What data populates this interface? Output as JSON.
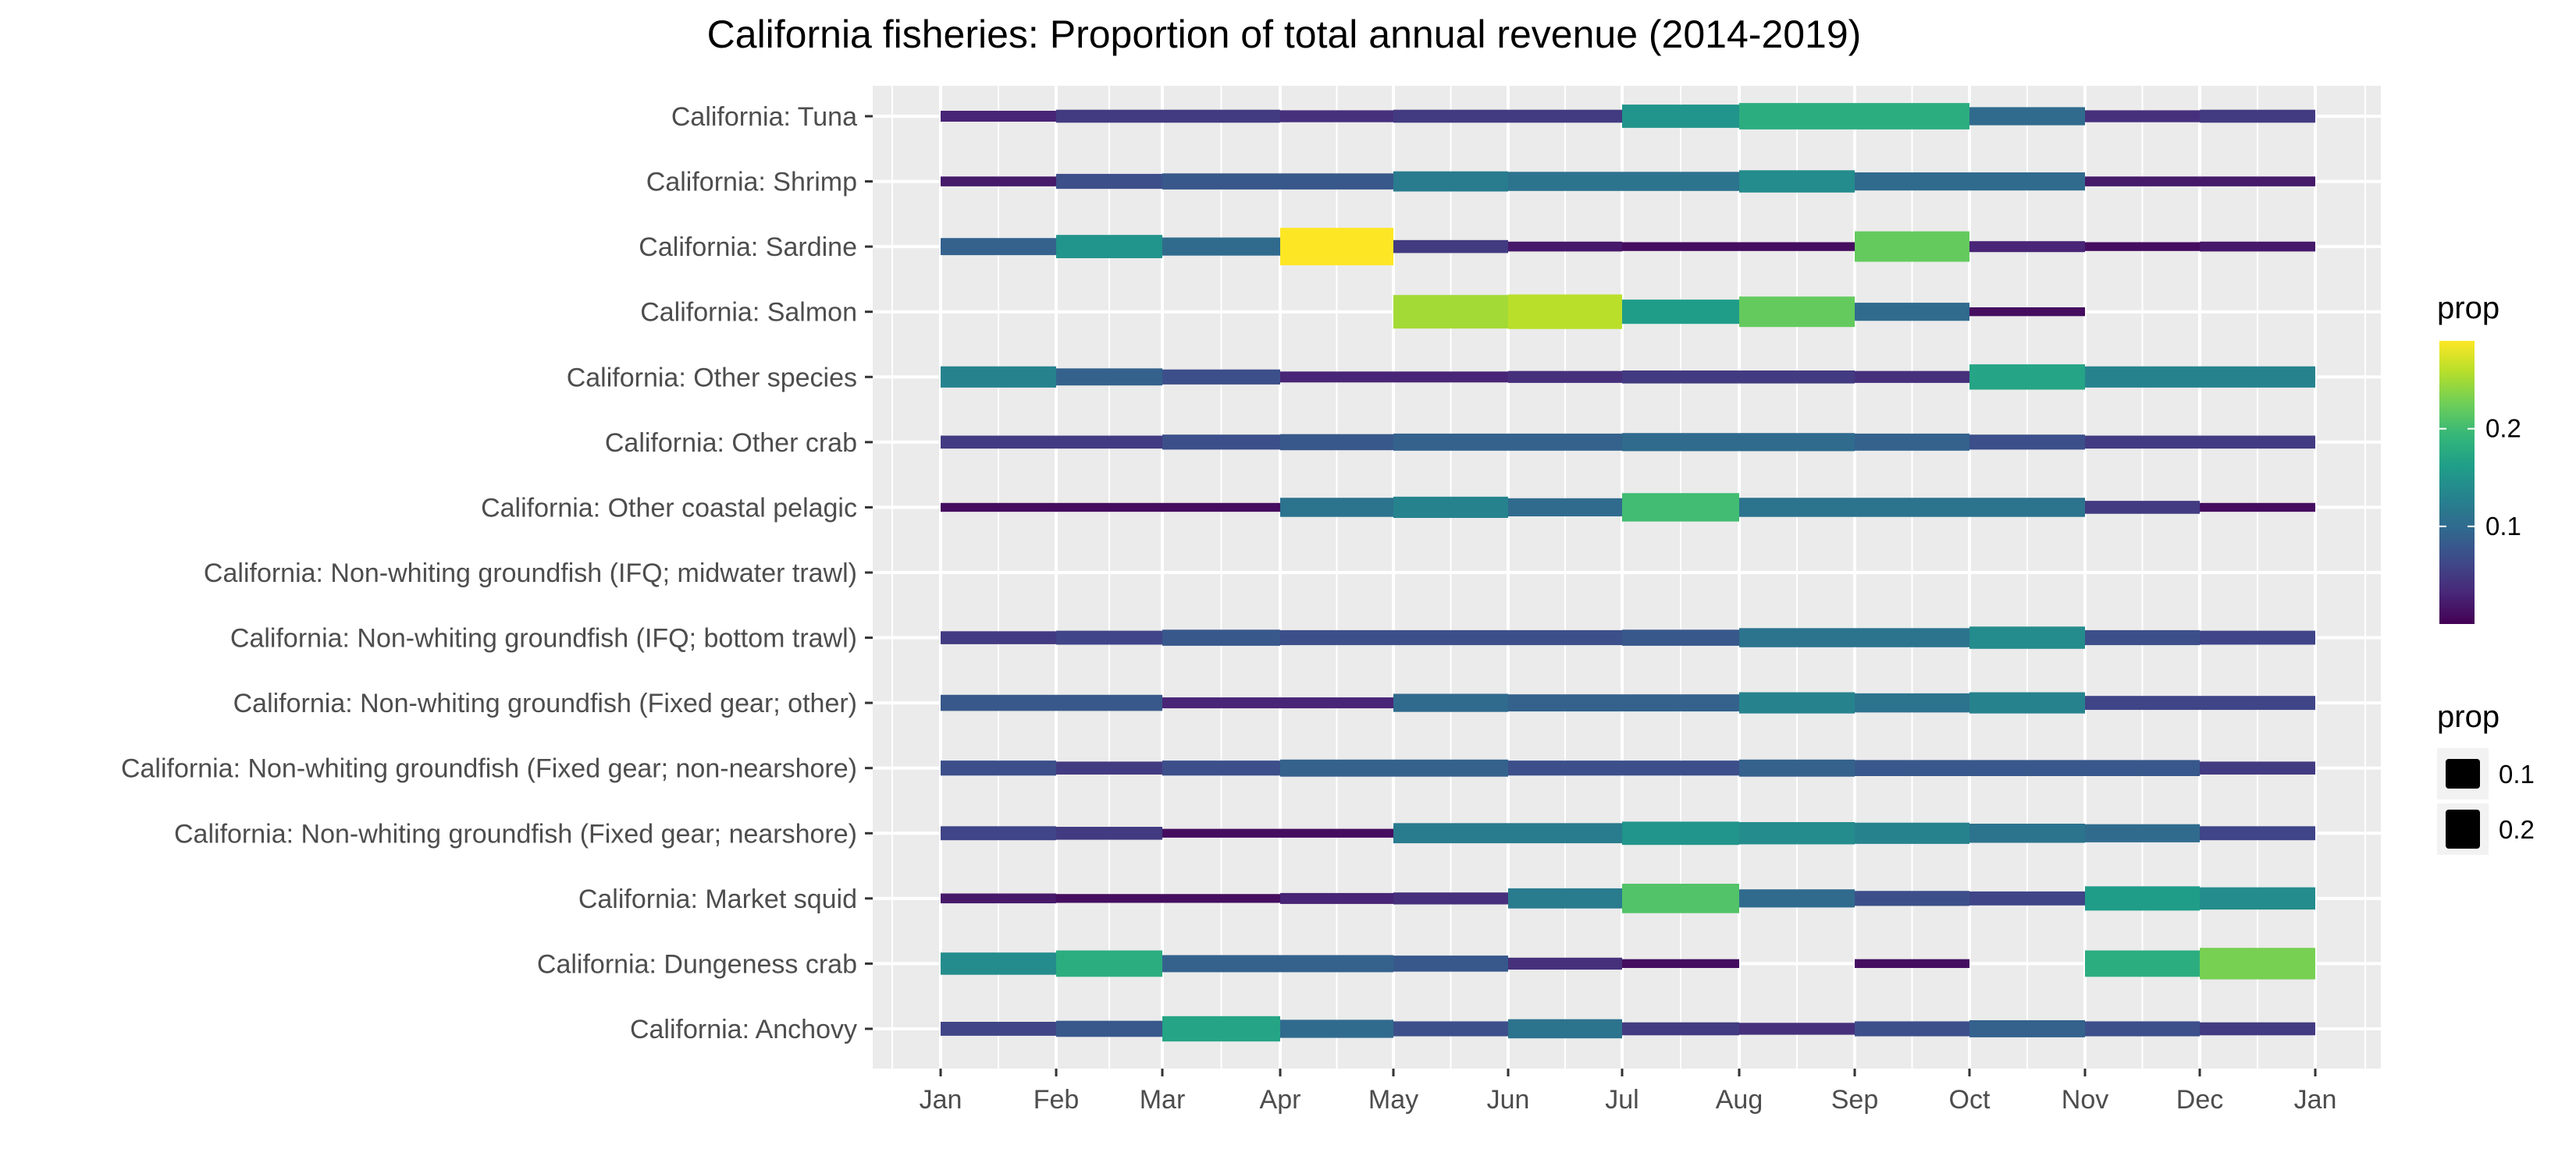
{
  "chart_data": {
    "type": "heatmap",
    "title": "California fisheries: Proportion of total annual revenue (2014-2019)",
    "xlabel": "",
    "ylabel": "",
    "x_ticks": [
      "Jan",
      "Feb",
      "Mar",
      "Apr",
      "May",
      "Jun",
      "Jul",
      "Aug",
      "Sep",
      "Oct",
      "Nov",
      "Dec",
      "Jan"
    ],
    "months": [
      "Jan",
      "Feb",
      "Mar",
      "Apr",
      "May",
      "Jun",
      "Jul",
      "Aug",
      "Sep",
      "Oct",
      "Nov",
      "Dec"
    ],
    "grid": true,
    "encoding": "bar segment color and thickness both map to prop",
    "legend_placement": "right",
    "color_legend": {
      "title": "prop",
      "breaks": [
        0.1,
        0.2
      ],
      "min": 0.0,
      "max": 0.29,
      "palette": "viridis"
    },
    "size_legend": {
      "title": "prop",
      "breaks": [
        0.1,
        0.2
      ]
    },
    "series": [
      {
        "name": "California: Tuna",
        "values": [
          0.03,
          0.05,
          0.05,
          0.04,
          0.05,
          0.05,
          0.15,
          0.18,
          0.18,
          0.1,
          0.04,
          0.05
        ]
      },
      {
        "name": "California: Shrimp",
        "values": [
          0.02,
          0.07,
          0.08,
          0.08,
          0.12,
          0.11,
          0.11,
          0.14,
          0.1,
          0.1,
          0.02,
          0.02
        ]
      },
      {
        "name": "California: Sardine",
        "values": [
          0.09,
          0.15,
          0.1,
          0.29,
          0.05,
          0.02,
          0.01,
          0.01,
          0.22,
          0.03,
          0.01,
          0.02
        ]
      },
      {
        "name": "California: Salmon",
        "values": [
          null,
          null,
          null,
          null,
          0.25,
          0.26,
          0.16,
          0.22,
          0.1,
          0.01,
          null,
          null
        ]
      },
      {
        "name": "California: Other species",
        "values": [
          0.13,
          0.09,
          0.07,
          0.03,
          0.03,
          0.04,
          0.05,
          0.05,
          0.04,
          0.17,
          0.13,
          0.13
        ]
      },
      {
        "name": "California: Other crab",
        "values": [
          0.05,
          0.05,
          0.07,
          0.08,
          0.09,
          0.09,
          0.1,
          0.1,
          0.09,
          0.07,
          0.05,
          0.05
        ]
      },
      {
        "name": "California: Other coastal pelagic",
        "values": [
          0.01,
          0.01,
          0.01,
          0.11,
          0.13,
          0.1,
          0.2,
          0.11,
          0.11,
          0.11,
          0.05,
          0.01
        ]
      },
      {
        "name": "California: Non-whiting groundfish (IFQ; midwater trawl)",
        "values": [
          null,
          null,
          null,
          null,
          null,
          null,
          null,
          null,
          null,
          null,
          null,
          null
        ]
      },
      {
        "name": "California: Non-whiting groundfish (IFQ; bottom trawl)",
        "values": [
          0.05,
          0.06,
          0.08,
          0.07,
          0.07,
          0.07,
          0.08,
          0.11,
          0.11,
          0.14,
          0.07,
          0.06
        ]
      },
      {
        "name": "California: Non-whiting groundfish (Fixed gear; other)",
        "values": [
          0.08,
          0.08,
          0.03,
          0.03,
          0.1,
          0.09,
          0.09,
          0.13,
          0.11,
          0.13,
          0.06,
          0.06
        ]
      },
      {
        "name": "California: Non-whiting groundfish (Fixed gear; non-nearshore)",
        "values": [
          0.07,
          0.05,
          0.07,
          0.09,
          0.09,
          0.07,
          0.07,
          0.09,
          0.08,
          0.08,
          0.08,
          0.05
        ]
      },
      {
        "name": "California: Non-whiting groundfish (Fixed gear; nearshore)",
        "values": [
          0.06,
          0.05,
          0.01,
          0.01,
          0.12,
          0.12,
          0.15,
          0.14,
          0.13,
          0.11,
          0.1,
          0.06
        ]
      },
      {
        "name": "California: Market squid",
        "values": [
          0.02,
          0.01,
          0.01,
          0.03,
          0.04,
          0.12,
          0.21,
          0.1,
          0.07,
          0.06,
          0.16,
          0.14
        ]
      },
      {
        "name": "California: Dungeness crab",
        "values": [
          0.14,
          0.18,
          0.09,
          0.09,
          0.08,
          0.04,
          0.01,
          null,
          0.01,
          null,
          0.18,
          0.23
        ]
      },
      {
        "name": "California: Anchovy",
        "values": [
          0.06,
          0.08,
          0.17,
          0.1,
          0.07,
          0.11,
          0.05,
          0.04,
          0.07,
          0.09,
          0.07,
          0.05
        ]
      }
    ]
  }
}
